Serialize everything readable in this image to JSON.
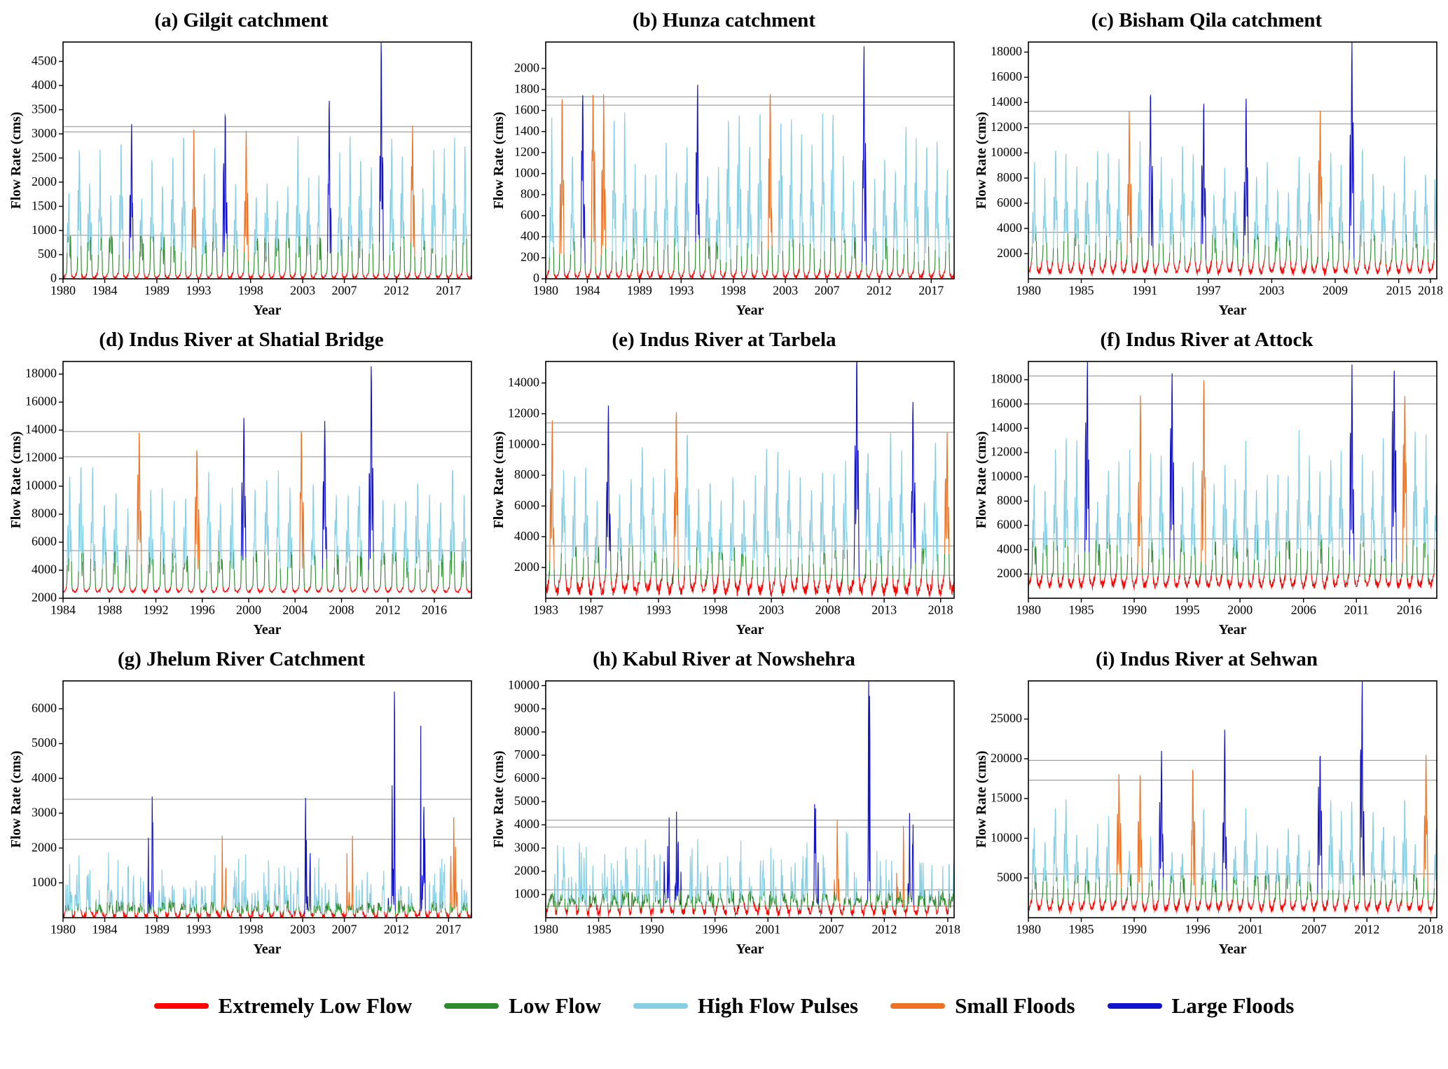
{
  "figure": {
    "background": "#ffffff"
  },
  "colors": {
    "extremely_low": "#FF0000",
    "low": "#2E8B2E",
    "high_pulse": "#85CEE4",
    "small_flood": "#ED7224",
    "large_flood": "#1414CC",
    "threshold_line": "#8C8C8C",
    "axis": "#000000"
  },
  "legend": {
    "items": [
      {
        "label": "Extremely Low Flow",
        "color_key": "extremely_low"
      },
      {
        "label": "Low Flow",
        "color_key": "low"
      },
      {
        "label": "High Flow Pulses",
        "color_key": "high_pulse"
      },
      {
        "label": "Small Floods",
        "color_key": "small_flood"
      },
      {
        "label": "Large Floods",
        "color_key": "large_flood"
      }
    ]
  },
  "chart_data": [
    {
      "type": "line",
      "id": "a",
      "title": "(a) Gilgit catchment",
      "xlabel": "Year",
      "ylabel": "Flow Rate (cms)",
      "x_range": [
        1980,
        2019.2
      ],
      "x_ticks": [
        1980,
        1984,
        1989,
        1993,
        1998,
        2003,
        2007,
        2012,
        2017
      ],
      "ylim": [
        0,
        4900
      ],
      "y_ticks": [
        0,
        500,
        1000,
        1500,
        2000,
        2500,
        3000,
        3500,
        4000,
        4500
      ],
      "thresholds": [
        3150,
        3040,
        900
      ],
      "red_max": 140,
      "green_max": 900,
      "base_level": 95,
      "base_amp": 75,
      "base_noise": 40,
      "peak_range": [
        1500,
        2900
      ],
      "style": "seasonal",
      "flood_events": [
        {
          "year": 1986,
          "peak": 3150,
          "type": "large"
        },
        {
          "year": 1992,
          "peak": 3000,
          "type": "small"
        },
        {
          "year": 1995,
          "peak": 3280,
          "type": "large"
        },
        {
          "year": 1997,
          "peak": 3010,
          "type": "small"
        },
        {
          "year": 2005,
          "peak": 3620,
          "type": "large"
        },
        {
          "year": 2010,
          "peak": 4830,
          "type": "large"
        },
        {
          "year": 2013,
          "peak": 3120,
          "type": "small"
        }
      ]
    },
    {
      "type": "line",
      "id": "b",
      "title": "(b) Hunza catchment",
      "xlabel": "Year",
      "ylabel": "Flow Rate (cms)",
      "x_range": [
        1980,
        2019.2
      ],
      "x_ticks": [
        1980,
        1984,
        1989,
        1993,
        1998,
        2003,
        2007,
        2012,
        2017
      ],
      "ylim": [
        0,
        2250
      ],
      "y_ticks": [
        0,
        200,
        400,
        600,
        800,
        1000,
        1200,
        1400,
        1600,
        1800,
        2000
      ],
      "thresholds": [
        1730,
        1650,
        400
      ],
      "red_max": 95,
      "green_max": 400,
      "base_level": 62,
      "base_amp": 48,
      "base_noise": 25,
      "peak_range": [
        850,
        1600
      ],
      "style": "seasonal",
      "flood_events": [
        {
          "year": 1981,
          "peak": 1660,
          "type": "small"
        },
        {
          "year": 1983,
          "peak": 1700,
          "type": "large"
        },
        {
          "year": 1984,
          "peak": 1700,
          "type": "small"
        },
        {
          "year": 1985,
          "peak": 1710,
          "type": "small"
        },
        {
          "year": 1994,
          "peak": 1800,
          "type": "large"
        },
        {
          "year": 2001,
          "peak": 1700,
          "type": "small"
        },
        {
          "year": 2010,
          "peak": 2160,
          "type": "large"
        }
      ]
    },
    {
      "type": "line",
      "id": "c",
      "title": "(c) Bisham Qila catchment",
      "xlabel": "Year",
      "ylabel": "Flow Rate (cms)",
      "x_range": [
        1980,
        2018.6
      ],
      "x_ticks": [
        1980,
        1985,
        1991,
        1997,
        2003,
        2009,
        2015,
        2018
      ],
      "ylim": [
        0,
        18800
      ],
      "y_ticks": [
        2000,
        4000,
        6000,
        8000,
        10000,
        12000,
        14000,
        16000,
        18000
      ],
      "thresholds": [
        13300,
        12300,
        3700
      ],
      "red_max": 1500,
      "green_max": 3700,
      "base_level": 1150,
      "base_amp": 620,
      "base_noise": 350,
      "peak_range": [
        6000,
        10400
      ],
      "style": "seasonal",
      "flood_events": [
        {
          "year": 1989,
          "peak": 12500,
          "type": "small"
        },
        {
          "year": 1991,
          "peak": 14100,
          "type": "large"
        },
        {
          "year": 1996,
          "peak": 13300,
          "type": "large"
        },
        {
          "year": 2000,
          "peak": 13900,
          "type": "large"
        },
        {
          "year": 2007,
          "peak": 12700,
          "type": "small"
        },
        {
          "year": 2010,
          "peak": 18400,
          "type": "large"
        }
      ]
    },
    {
      "type": "line",
      "id": "d",
      "title": "(d) Indus River at Shatial Bridge",
      "xlabel": "Year",
      "ylabel": "Flow Rate (cms)",
      "x_range": [
        1984,
        2019.2
      ],
      "x_ticks": [
        1984,
        1988,
        1992,
        1996,
        2000,
        2004,
        2008,
        2012,
        2016
      ],
      "ylim": [
        2000,
        18900
      ],
      "y_ticks": [
        2000,
        4000,
        6000,
        8000,
        10000,
        12000,
        14000,
        16000,
        18000
      ],
      "thresholds": [
        13900,
        12100,
        5400
      ],
      "red_max": 2850,
      "green_max": 5400,
      "base_level": 2700,
      "base_amp": 240,
      "base_noise": 130,
      "peak_range": [
        8000,
        11300
      ],
      "style": "seasonal",
      "flood_events": [
        {
          "year": 1990,
          "peak": 13600,
          "type": "small"
        },
        {
          "year": 1995,
          "peak": 12300,
          "type": "small"
        },
        {
          "year": 1999,
          "peak": 14700,
          "type": "large"
        },
        {
          "year": 2004,
          "peak": 13600,
          "type": "small"
        },
        {
          "year": 2006,
          "peak": 14400,
          "type": "large"
        },
        {
          "year": 2010,
          "peak": 18300,
          "type": "large"
        }
      ]
    },
    {
      "type": "line",
      "id": "e",
      "title": "(e) Indus River at Tarbela",
      "xlabel": "Year",
      "ylabel": "Flow Rate (cms)",
      "x_range": [
        1983,
        2019.2
      ],
      "x_ticks": [
        1983,
        1987,
        1993,
        1998,
        2003,
        2008,
        2013,
        2018
      ],
      "ylim": [
        0,
        15400
      ],
      "y_ticks": [
        2000,
        4000,
        6000,
        8000,
        10000,
        12000,
        14000
      ],
      "thresholds": [
        11400,
        10800,
        3400,
        1500
      ],
      "red_max": 1500,
      "green_max": 3400,
      "base_level": 1100,
      "base_amp": 650,
      "base_noise": 650,
      "peak_range": [
        5000,
        10300
      ],
      "style": "seasonal",
      "flood_events": [
        {
          "year": 1983,
          "peak": 11100,
          "type": "small"
        },
        {
          "year": 1988,
          "peak": 11700,
          "type": "large"
        },
        {
          "year": 1994,
          "peak": 11300,
          "type": "small"
        },
        {
          "year": 2010,
          "peak": 14700,
          "type": "large"
        },
        {
          "year": 2015,
          "peak": 12100,
          "type": "large"
        },
        {
          "year": 2018,
          "peak": 10400,
          "type": "small"
        }
      ]
    },
    {
      "type": "line",
      "id": "f",
      "title": "(f) Indus River at Attock",
      "xlabel": "Year",
      "ylabel": "Flow Rate (cms)",
      "x_range": [
        1980,
        2018.6
      ],
      "x_ticks": [
        1980,
        1985,
        1990,
        1995,
        2000,
        2006,
        2011,
        2016
      ],
      "ylim": [
        0,
        19500
      ],
      "y_ticks": [
        2000,
        4000,
        6000,
        8000,
        10000,
        12000,
        14000,
        16000,
        18000
      ],
      "thresholds": [
        18300,
        16000,
        4900,
        2000
      ],
      "red_max": 2000,
      "green_max": 4900,
      "base_level": 1700,
      "base_amp": 650,
      "base_noise": 500,
      "peak_range": [
        7000,
        13400
      ],
      "style": "seasonal",
      "flood_events": [
        {
          "year": 1985,
          "peak": 18900,
          "type": "large"
        },
        {
          "year": 1990,
          "peak": 16200,
          "type": "small"
        },
        {
          "year": 1993,
          "peak": 18200,
          "type": "large"
        },
        {
          "year": 1996,
          "peak": 17200,
          "type": "small"
        },
        {
          "year": 2010,
          "peak": 18900,
          "type": "large"
        },
        {
          "year": 2014,
          "peak": 18300,
          "type": "large"
        },
        {
          "year": 2015,
          "peak": 16000,
          "type": "small"
        }
      ]
    },
    {
      "type": "line",
      "id": "g",
      "title": "(g) Jhelum River Catchment",
      "xlabel": "Year",
      "ylabel": "Flow Rate (cms)",
      "x_range": [
        1980,
        2019.2
      ],
      "x_ticks": [
        1980,
        1984,
        1989,
        1993,
        1998,
        2003,
        2007,
        2012,
        2017
      ],
      "ylim": [
        0,
        6800
      ],
      "y_ticks": [
        1000,
        2000,
        3000,
        4000,
        5000,
        6000
      ],
      "thresholds": [
        3400,
        2250
      ],
      "red_max": 200,
      "green_max": 500,
      "base_level": 150,
      "base_amp": 115,
      "base_noise": 120,
      "peak_range": [
        650,
        1800
      ],
      "style": "spiky",
      "flood_events": [
        {
          "year": 1988,
          "peak": 3400,
          "type": "large"
        },
        {
          "year": 1995,
          "peak": 2370,
          "type": "small"
        },
        {
          "year": 2003,
          "peak": 3470,
          "type": "large"
        },
        {
          "year": 2007,
          "peak": 2400,
          "type": "small"
        },
        {
          "year": 2011,
          "peak": 6560,
          "type": "large"
        },
        {
          "year": 2014,
          "peak": 5470,
          "type": "large"
        },
        {
          "year": 2017,
          "peak": 2800,
          "type": "small"
        }
      ]
    },
    {
      "type": "line",
      "id": "h",
      "title": "(h) Kabul River at Nowshehra",
      "xlabel": "Year",
      "ylabel": "Flow Rate (cms)",
      "x_range": [
        1980,
        2018.6
      ],
      "x_ticks": [
        1980,
        1985,
        1990,
        1996,
        2001,
        2007,
        2012,
        2018
      ],
      "ylim": [
        0,
        10200
      ],
      "y_ticks": [
        1000,
        2000,
        3000,
        4000,
        5000,
        6000,
        7000,
        8000,
        9000,
        10000
      ],
      "thresholds": [
        4200,
        3900,
        1200,
        500
      ],
      "red_max": 600,
      "green_max": 1200,
      "base_level": 520,
      "base_amp": 300,
      "base_noise": 260,
      "peak_range": [
        1800,
        3400
      ],
      "style": "spiky",
      "flood_events": [
        {
          "year": 1991,
          "peak": 4200,
          "type": "large"
        },
        {
          "year": 1992,
          "peak": 4250,
          "type": "large"
        },
        {
          "year": 2005,
          "peak": 4700,
          "type": "large"
        },
        {
          "year": 2007,
          "peak": 4000,
          "type": "small"
        },
        {
          "year": 2010,
          "peak": 9800,
          "type": "large"
        },
        {
          "year": 2013,
          "peak": 4000,
          "type": "small"
        },
        {
          "year": 2014,
          "peak": 4250,
          "type": "large"
        }
      ]
    },
    {
      "type": "line",
      "id": "i",
      "title": "(i) Indus River at Sehwan",
      "xlabel": "Year",
      "ylabel": "Flow Rate (cms)",
      "x_range": [
        1980,
        2018.6
      ],
      "x_ticks": [
        1980,
        1985,
        1990,
        1996,
        2001,
        2007,
        2012,
        2018
      ],
      "ylim": [
        0,
        29800
      ],
      "y_ticks": [
        5000,
        10000,
        15000,
        20000,
        25000
      ],
      "thresholds": [
        19800,
        17300,
        5500,
        3000
      ],
      "red_max": 2400,
      "green_max": 5500,
      "base_level": 1950,
      "base_amp": 850,
      "base_noise": 700,
      "peak_range": [
        7000,
        14200
      ],
      "style": "seasonal",
      "flood_events": [
        {
          "year": 1988,
          "peak": 17600,
          "type": "small"
        },
        {
          "year": 1990,
          "peak": 17100,
          "type": "small"
        },
        {
          "year": 1992,
          "peak": 20200,
          "type": "large"
        },
        {
          "year": 1995,
          "peak": 17900,
          "type": "small"
        },
        {
          "year": 1998,
          "peak": 22600,
          "type": "large"
        },
        {
          "year": 2007,
          "peak": 19900,
          "type": "large"
        },
        {
          "year": 2011,
          "peak": 29000,
          "type": "large"
        },
        {
          "year": 2017,
          "peak": 19900,
          "type": "small"
        }
      ]
    }
  ]
}
